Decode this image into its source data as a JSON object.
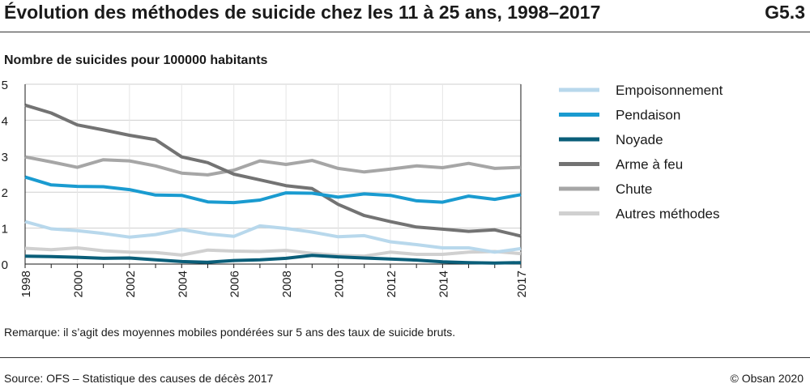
{
  "header": {
    "title": "Évolution des méthodes de suicide chez les 11 à 25 ans, 1998–2017",
    "code": "G5.3"
  },
  "footer": {
    "remark": "Remarque: il s’agit des moyennes mobiles pondérées sur 5 ans des taux de suicide bruts.",
    "source": "Source: OFS – Statistique des causes de décès 2017",
    "copyright": "© Obsan 2020"
  },
  "chart_data": {
    "type": "line",
    "title": "Évolution des méthodes de suicide chez les 11 à 25 ans, 1998–2017",
    "ylabel": "Nombre de suicides pour 100000 habitants",
    "xlabel": "",
    "ylim": [
      0,
      5
    ],
    "y_ticks": [
      "0",
      "1",
      "2",
      "3",
      "4",
      "5"
    ],
    "x": [
      1998,
      1999,
      2000,
      2001,
      2002,
      2003,
      2004,
      2005,
      2006,
      2007,
      2008,
      2009,
      2010,
      2011,
      2012,
      2013,
      2014,
      2015,
      2016,
      2017
    ],
    "x_tick_labels": [
      "1998",
      "2000",
      "2002",
      "2004",
      "2006",
      "2008",
      "2010",
      "2012",
      "2014",
      "2017"
    ],
    "x_tick_years": [
      1998,
      2000,
      2002,
      2004,
      2006,
      2008,
      2010,
      2012,
      2014,
      2017
    ],
    "grid": true,
    "legend_position": "right",
    "series": [
      {
        "name": "Empoisonnement",
        "color": "#b8d8ec",
        "values": [
          1.18,
          0.98,
          0.93,
          0.85,
          0.75,
          0.82,
          0.96,
          0.84,
          0.77,
          1.06,
          0.99,
          0.89,
          0.76,
          0.79,
          0.62,
          0.54,
          0.45,
          0.45,
          0.33,
          0.43
        ]
      },
      {
        "name": "Pendaison",
        "color": "#1a9bd0",
        "values": [
          2.42,
          2.2,
          2.16,
          2.15,
          2.07,
          1.92,
          1.91,
          1.73,
          1.71,
          1.78,
          1.98,
          1.97,
          1.86,
          1.95,
          1.91,
          1.76,
          1.72,
          1.89,
          1.8,
          1.93
        ]
      },
      {
        "name": "Noyade",
        "color": "#0a5e79",
        "values": [
          0.22,
          0.21,
          0.19,
          0.16,
          0.17,
          0.12,
          0.07,
          0.05,
          0.1,
          0.12,
          0.16,
          0.24,
          0.2,
          0.17,
          0.14,
          0.11,
          0.06,
          0.04,
          0.03,
          0.04
        ]
      },
      {
        "name": "Arme à feu",
        "color": "#737373",
        "values": [
          4.42,
          4.2,
          3.87,
          3.73,
          3.58,
          3.46,
          2.98,
          2.82,
          2.5,
          2.34,
          2.18,
          2.1,
          1.66,
          1.35,
          1.18,
          1.03,
          0.97,
          0.91,
          0.95,
          0.78
        ]
      },
      {
        "name": "Chute",
        "color": "#a6a6a6",
        "values": [
          2.98,
          2.84,
          2.69,
          2.9,
          2.87,
          2.73,
          2.53,
          2.48,
          2.61,
          2.87,
          2.77,
          2.88,
          2.66,
          2.56,
          2.64,
          2.73,
          2.68,
          2.8,
          2.66,
          2.69
        ]
      },
      {
        "name": "Autres méthodes",
        "color": "#d0d0d0",
        "values": [
          0.44,
          0.4,
          0.45,
          0.37,
          0.33,
          0.32,
          0.25,
          0.39,
          0.36,
          0.35,
          0.38,
          0.3,
          0.24,
          0.22,
          0.33,
          0.27,
          0.27,
          0.33,
          0.35,
          0.29
        ]
      }
    ]
  }
}
